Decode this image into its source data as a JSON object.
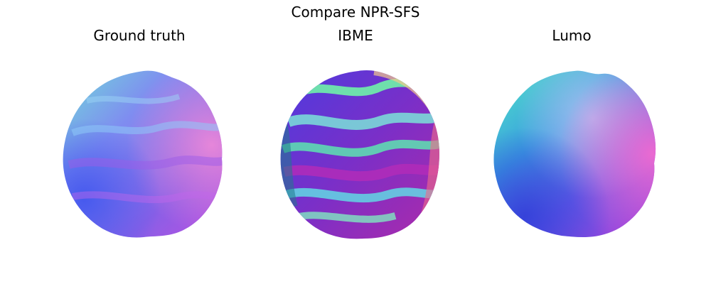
{
  "figure": {
    "title": "Compare NPR-SFS",
    "panels": [
      {
        "title": "Ground truth",
        "image": "normal-map-sphere-smooth-bumps"
      },
      {
        "title": "IBME",
        "image": "normal-map-sphere-exaggerated-bumps"
      },
      {
        "title": "Lumo",
        "image": "normal-map-sphere-smooth-no-detail"
      }
    ]
  },
  "colors": {
    "background": "#ffffff",
    "text": "#000000"
  }
}
